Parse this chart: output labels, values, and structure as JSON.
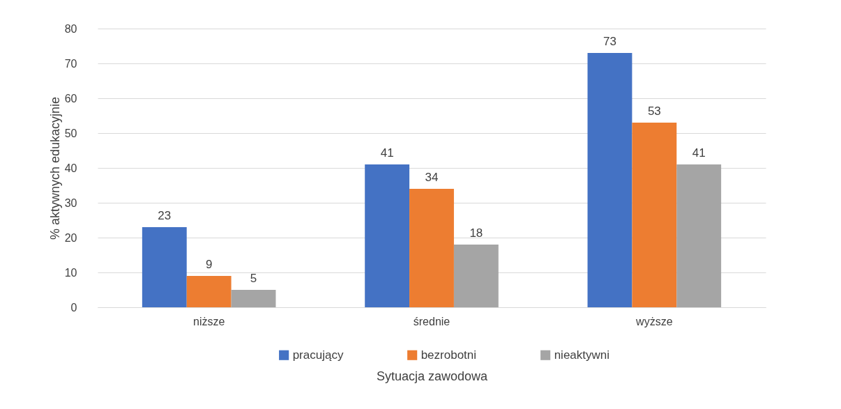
{
  "chart_data": {
    "type": "bar",
    "xlabel": "Sytuacja zawodowa",
    "ylabel": "% aktywnych edukacyjnie",
    "categories": [
      "niższe",
      "średnie",
      "wyższe"
    ],
    "series": [
      {
        "name": "pracujący",
        "color": "#4472c4",
        "values": [
          23,
          41,
          73
        ]
      },
      {
        "name": "bezrobotni",
        "color": "#ed7d31",
        "values": [
          9,
          34,
          53
        ]
      },
      {
        "name": "nieaktywni",
        "color": "#a5a5a5",
        "values": [
          5,
          18,
          41
        ]
      }
    ],
    "ylim": [
      0,
      80
    ],
    "yticks": [
      0,
      10,
      20,
      30,
      40,
      50,
      60,
      70,
      80
    ],
    "grid": "y",
    "legend": "bottom",
    "data_labels": true
  }
}
